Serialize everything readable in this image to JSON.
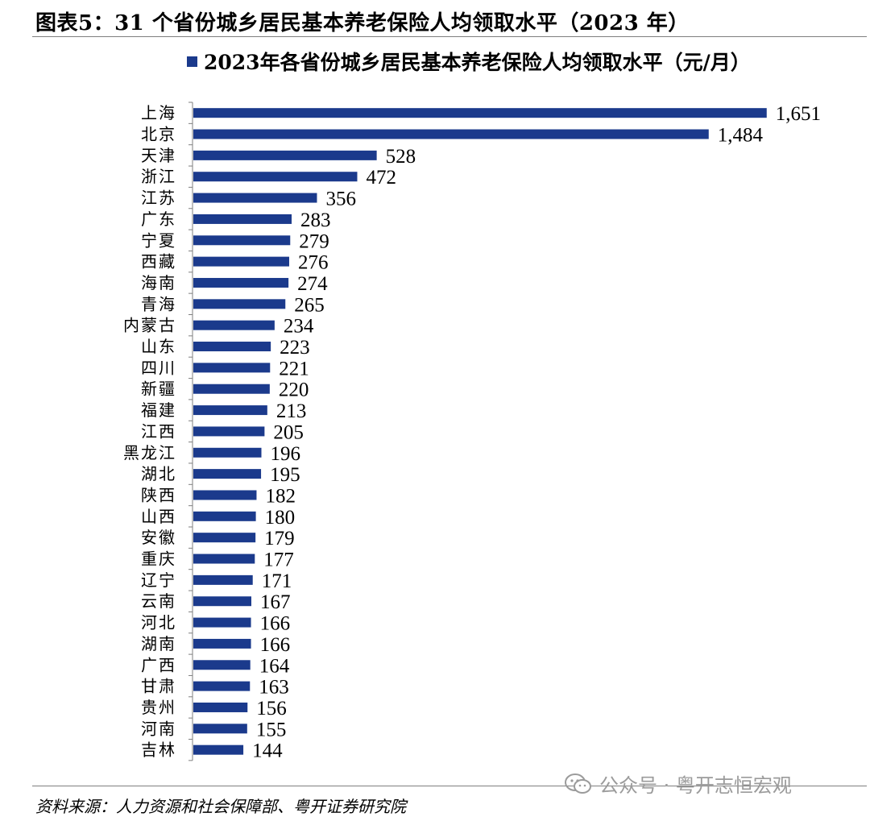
{
  "header": {
    "title": "图表5：31 个省份城乡居民基本养老保险人均领取水平（2023 年）"
  },
  "footer": {
    "source": "资料来源：人力资源和社会保障部、粤开证券研究院",
    "watermark": "公众号 · 粤开志恒宏观",
    "watermark_icon": "wechat-icon"
  },
  "colors": {
    "bar": "#1b3a8c",
    "axis": "#7f7f7f"
  },
  "chart_data": {
    "type": "bar",
    "orientation": "horizontal",
    "title": "",
    "xlabel": "",
    "ylabel": "",
    "legend": {
      "placement": "top",
      "entries": [
        "2023年各省份城乡居民基本养老保险人均领取水平（元/月）"
      ]
    },
    "categories": [
      "上海",
      "北京",
      "天津",
      "浙江",
      "江苏",
      "广东",
      "宁夏",
      "西藏",
      "海南",
      "青海",
      "内蒙古",
      "山东",
      "四川",
      "新疆",
      "福建",
      "江西",
      "黑龙江",
      "湖北",
      "陕西",
      "山西",
      "安徽",
      "重庆",
      "辽宁",
      "云南",
      "河北",
      "湖南",
      "广西",
      "甘肃",
      "贵州",
      "河南",
      "吉林"
    ],
    "series": [
      {
        "name": "2023年各省份城乡居民基本养老保险人均领取水平（元/月）",
        "values": [
          1651,
          1484,
          528,
          472,
          356,
          283,
          279,
          276,
          274,
          265,
          234,
          223,
          221,
          220,
          213,
          205,
          196,
          195,
          182,
          180,
          179,
          177,
          171,
          167,
          166,
          166,
          164,
          163,
          156,
          155,
          144
        ],
        "labels": [
          "1,651",
          "1,484",
          "528",
          "472",
          "356",
          "283",
          "279",
          "276",
          "274",
          "265",
          "234",
          "223",
          "221",
          "220",
          "213",
          "205",
          "196",
          "195",
          "182",
          "180",
          "179",
          "177",
          "171",
          "167",
          "166",
          "166",
          "164",
          "163",
          "156",
          "155",
          "144"
        ]
      }
    ],
    "xlim": [
      0,
      1800
    ],
    "grid": false,
    "data_labels": true
  }
}
